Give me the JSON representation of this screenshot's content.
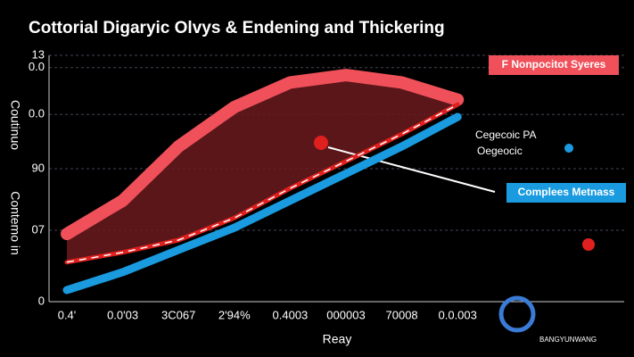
{
  "chart_data": {
    "type": "line",
    "title": "Cottorial Digaryic Olvys & Endening and Thickering",
    "x_label": "Reay",
    "y_label": "Contemo in",
    "y_label_2": "Coutinuo",
    "categories": [
      "0.4'",
      "0.0'03",
      "3C067",
      "2'94%",
      "0.4003",
      "000003",
      "70008",
      "0.0.003"
    ],
    "ylim": [
      0,
      100
    ],
    "yticks": [
      {
        "value": 100,
        "label": "13"
      },
      {
        "value": 95,
        "label": "0.0"
      },
      {
        "value": 76,
        "label": "0.0"
      },
      {
        "value": 54,
        "label": "90"
      },
      {
        "value": 29,
        "label": "07"
      },
      0
    ],
    "grid": true,
    "series": [
      {
        "name": "F Nonpocitot Syeres",
        "color": "#f0505a",
        "values": [
          27.5,
          41,
          63,
          79,
          89,
          92,
          89,
          82
        ]
      },
      {
        "name": "Complees Metnass",
        "color": "#1a9be0",
        "values": [
          4.7,
          12,
          21,
          30,
          41,
          52,
          63,
          75
        ]
      },
      {
        "name": "Cegecoic PA",
        "color": "#e0201e",
        "values": [
          16,
          20,
          25,
          34,
          46,
          57,
          68,
          80
        ]
      }
    ],
    "annotation": "Oegeocic",
    "watermark": "BANGYUNWANG"
  }
}
